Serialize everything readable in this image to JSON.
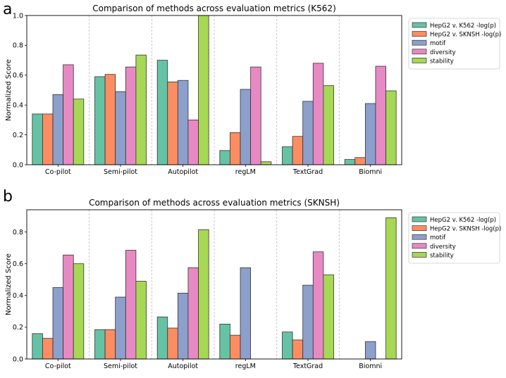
{
  "chart_data": [
    {
      "panel": "a",
      "type": "bar",
      "title": "Comparison of methods across evaluation metrics (K562)",
      "xlabel": "",
      "ylabel": "Normalized Score",
      "ylim": [
        0,
        1.0
      ],
      "yticks": [
        "0.0",
        "0.2",
        "0.4",
        "0.6",
        "0.8",
        "1.0"
      ],
      "categories": [
        "Co-pilot",
        "Semi-pilot",
        "Autopilot",
        "regLM",
        "TextGrad",
        "Biomni"
      ],
      "series": [
        {
          "name": "HepG2 v. K562 -log(p)",
          "color": "#66c2a5",
          "values": [
            0.34,
            0.59,
            0.7,
            0.095,
            0.12,
            0.035
          ]
        },
        {
          "name": "HepG2 v. SKNSH -log(p)",
          "color": "#fc8d62",
          "values": [
            0.34,
            0.605,
            0.555,
            0.215,
            0.19,
            0.048
          ]
        },
        {
          "name": "motif",
          "color": "#8da0cb",
          "values": [
            0.47,
            0.49,
            0.565,
            0.505,
            0.425,
            0.41
          ]
        },
        {
          "name": "diversity",
          "color": "#e78ac3",
          "values": [
            0.67,
            0.655,
            0.3,
            0.655,
            0.68,
            0.66
          ]
        },
        {
          "name": "stability",
          "color": "#a6d854",
          "values": [
            0.44,
            0.735,
            1.0,
            0.02,
            0.53,
            0.495
          ]
        }
      ],
      "legend": "upper right, outside plot"
    },
    {
      "panel": "b",
      "type": "bar",
      "title": "Comparison of methods across evaluation metrics (SKNSH)",
      "xlabel": "",
      "ylabel": "Normalized Score",
      "ylim": [
        0,
        0.94
      ],
      "yticks": [
        "0.0",
        "0.2",
        "0.4",
        "0.6",
        "0.8"
      ],
      "categories": [
        "Co-pilot",
        "Semi-pilot",
        "Autopilot",
        "regLM",
        "TextGrad",
        "Biomni"
      ],
      "series": [
        {
          "name": "HepG2 v. K562 -log(p)",
          "color": "#66c2a5",
          "values": [
            0.16,
            0.185,
            0.265,
            0.22,
            0.17,
            0
          ]
        },
        {
          "name": "HepG2 v. SKNSH -log(p)",
          "color": "#fc8d62",
          "values": [
            0.13,
            0.185,
            0.195,
            0.15,
            0.12,
            0
          ]
        },
        {
          "name": "motif",
          "color": "#8da0cb",
          "values": [
            0.45,
            0.39,
            0.415,
            0.575,
            0.465,
            0.11
          ]
        },
        {
          "name": "diversity",
          "color": "#e78ac3",
          "values": [
            0.655,
            0.685,
            0.575,
            0,
            0.675,
            0
          ]
        },
        {
          "name": "stability",
          "color": "#a6d854",
          "values": [
            0.6,
            0.49,
            0.815,
            0,
            0.53,
            0.89
          ]
        }
      ],
      "legend": "upper right, outside plot"
    }
  ]
}
